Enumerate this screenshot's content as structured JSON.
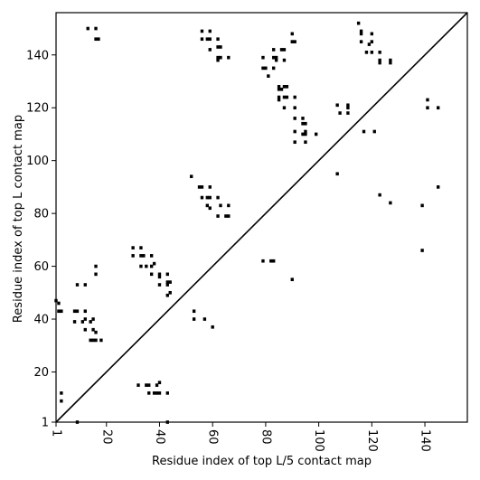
{
  "chart_data": {
    "type": "scatter",
    "title": "",
    "xlabel": "Residue index of top L/5 contact map",
    "ylabel": "Residue index of top L contact map",
    "xlim": [
      1,
      156
    ],
    "ylim": [
      1,
      156
    ],
    "xticks": [
      1,
      20,
      40,
      60,
      80,
      100,
      120,
      140
    ],
    "yticks": [
      1,
      20,
      40,
      60,
      80,
      100,
      120,
      140
    ],
    "grid": false,
    "diagonal": true,
    "marker": "square",
    "colors": {
      "marker": "#000000",
      "diagonal": "#000000",
      "axes": "#000000"
    },
    "points": [
      [
        1,
        47
      ],
      [
        2,
        46
      ],
      [
        2,
        43
      ],
      [
        3,
        43
      ],
      [
        3,
        12
      ],
      [
        3,
        9
      ],
      [
        9,
        1
      ],
      [
        9,
        53
      ],
      [
        12,
        53
      ],
      [
        8,
        43
      ],
      [
        9,
        43
      ],
      [
        8,
        39
      ],
      [
        11,
        39
      ],
      [
        12,
        40
      ],
      [
        12,
        43
      ],
      [
        12,
        36
      ],
      [
        14,
        39
      ],
      [
        15,
        40
      ],
      [
        15,
        36
      ],
      [
        16,
        35
      ],
      [
        14,
        32
      ],
      [
        15,
        32
      ],
      [
        16,
        32
      ],
      [
        18,
        32
      ],
      [
        16,
        57
      ],
      [
        16,
        60
      ],
      [
        13,
        150
      ],
      [
        16,
        150
      ],
      [
        16,
        146
      ],
      [
        17,
        146
      ],
      [
        30,
        67
      ],
      [
        30,
        64
      ],
      [
        33,
        67
      ],
      [
        33,
        64
      ],
      [
        34,
        64
      ],
      [
        33,
        60
      ],
      [
        35,
        60
      ],
      [
        37,
        60
      ],
      [
        38,
        61
      ],
      [
        37,
        64
      ],
      [
        37,
        57
      ],
      [
        40,
        57
      ],
      [
        40,
        56
      ],
      [
        40,
        53
      ],
      [
        43,
        54
      ],
      [
        44,
        54
      ],
      [
        43,
        53
      ],
      [
        43,
        57
      ],
      [
        43,
        49
      ],
      [
        44,
        50
      ],
      [
        32,
        15
      ],
      [
        35,
        15
      ],
      [
        36,
        15
      ],
      [
        36,
        12
      ],
      [
        38,
        12
      ],
      [
        39,
        12
      ],
      [
        40,
        12
      ],
      [
        39,
        15
      ],
      [
        40,
        16
      ],
      [
        43,
        12
      ],
      [
        43,
        1
      ],
      [
        52,
        94
      ],
      [
        56,
        90
      ],
      [
        55,
        90
      ],
      [
        59,
        90
      ],
      [
        56,
        86
      ],
      [
        58,
        86
      ],
      [
        59,
        86
      ],
      [
        62,
        86
      ],
      [
        58,
        83
      ],
      [
        59,
        82
      ],
      [
        63,
        83
      ],
      [
        66,
        83
      ],
      [
        65,
        79
      ],
      [
        66,
        79
      ],
      [
        62,
        79
      ],
      [
        53,
        43
      ],
      [
        53,
        40
      ],
      [
        57,
        40
      ],
      [
        60,
        37
      ],
      [
        56,
        149
      ],
      [
        58,
        146
      ],
      [
        59,
        146
      ],
      [
        59,
        149
      ],
      [
        56,
        146
      ],
      [
        62,
        146
      ],
      [
        62,
        143
      ],
      [
        63,
        143
      ],
      [
        59,
        142
      ],
      [
        62,
        139
      ],
      [
        63,
        139
      ],
      [
        66,
        139
      ],
      [
        62,
        138
      ],
      [
        79,
        139
      ],
      [
        79,
        135
      ],
      [
        80,
        135
      ],
      [
        81,
        132
      ],
      [
        83,
        142
      ],
      [
        83,
        139
      ],
      [
        84,
        139
      ],
      [
        84,
        138
      ],
      [
        83,
        135
      ],
      [
        85,
        128
      ],
      [
        87,
        128
      ],
      [
        85,
        127
      ],
      [
        86,
        127
      ],
      [
        88,
        128
      ],
      [
        85,
        124
      ],
      [
        85,
        123
      ],
      [
        87,
        124
      ],
      [
        88,
        124
      ],
      [
        87,
        120
      ],
      [
        86,
        142
      ],
      [
        87,
        142
      ],
      [
        87,
        138
      ],
      [
        90,
        145
      ],
      [
        91,
        145
      ],
      [
        90,
        148
      ],
      [
        79,
        62
      ],
      [
        82,
        62
      ],
      [
        83,
        62
      ],
      [
        90,
        55
      ],
      [
        91,
        124
      ],
      [
        91,
        120
      ],
      [
        91,
        116
      ],
      [
        94,
        116
      ],
      [
        94,
        114
      ],
      [
        95,
        114
      ],
      [
        91,
        111
      ],
      [
        94,
        110
      ],
      [
        95,
        110
      ],
      [
        95,
        111
      ],
      [
        99,
        110
      ],
      [
        91,
        107
      ],
      [
        95,
        107
      ],
      [
        107,
        121
      ],
      [
        108,
        118
      ],
      [
        111,
        118
      ],
      [
        111,
        120
      ],
      [
        111,
        121
      ],
      [
        107,
        95
      ],
      [
        116,
        149
      ],
      [
        116,
        148
      ],
      [
        115,
        152
      ],
      [
        116,
        145
      ],
      [
        119,
        144
      ],
      [
        120,
        145
      ],
      [
        120,
        148
      ],
      [
        118,
        141
      ],
      [
        120,
        141
      ],
      [
        123,
        141
      ],
      [
        123,
        138
      ],
      [
        123,
        137
      ],
      [
        127,
        137
      ],
      [
        127,
        138
      ],
      [
        117,
        111
      ],
      [
        121,
        111
      ],
      [
        123,
        87
      ],
      [
        127,
        84
      ],
      [
        141,
        123
      ],
      [
        141,
        120
      ],
      [
        145,
        120
      ],
      [
        145,
        90
      ],
      [
        139,
        83
      ],
      [
        139,
        66
      ]
    ]
  }
}
